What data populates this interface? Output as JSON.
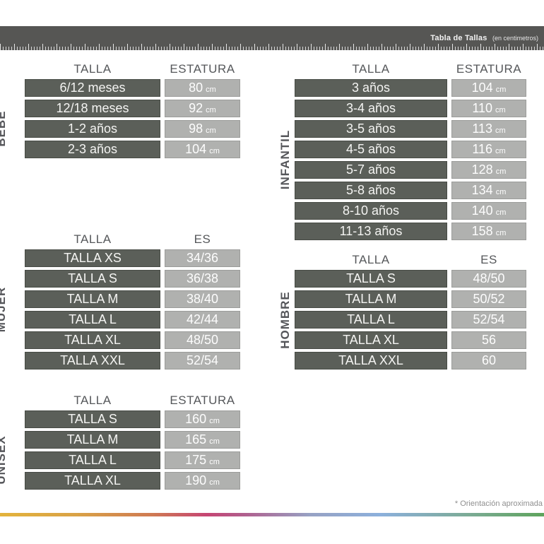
{
  "topbar": {
    "title": "Tabla de Tallas",
    "subtitle": "(en centimetros)"
  },
  "footnote": "* Orientación aproximada",
  "colors": {
    "topbar_bg": "#565654",
    "dark_cell_bg": "#5b5f59",
    "light_cell_bg": "#b0b1af",
    "header_text": "#55575a",
    "cell_text": "#ffffff",
    "footnote_text": "#8f8f8f",
    "rainbow": [
      "#e3b33c",
      "#c64573",
      "#8cb0dc",
      "#5ea45c"
    ]
  },
  "sections": [
    {
      "id": "bebe",
      "label": "BEBE",
      "col1": "TALLA",
      "col2": "ESTATURA",
      "rows": [
        {
          "talla": "6/12 meses",
          "value": "80",
          "unit": "cm"
        },
        {
          "talla": "12/18 meses",
          "value": "92",
          "unit": "cm"
        },
        {
          "talla": "1-2 años",
          "value": "98",
          "unit": "cm"
        },
        {
          "talla": "2-3 años",
          "value": "104",
          "unit": "cm"
        }
      ]
    },
    {
      "id": "infantil",
      "label": "INFANTIL",
      "col1": "TALLA",
      "col2": "ESTATURA",
      "rows": [
        {
          "talla": "3 años",
          "value": "104",
          "unit": "cm"
        },
        {
          "talla": "3-4 años",
          "value": "110",
          "unit": "cm"
        },
        {
          "talla": "3-5 años",
          "value": "113",
          "unit": "cm"
        },
        {
          "talla": "4-5 años",
          "value": "116",
          "unit": "cm"
        },
        {
          "talla": "5-7 años",
          "value": "128",
          "unit": "cm"
        },
        {
          "talla": "5-8 años",
          "value": "134",
          "unit": "cm"
        },
        {
          "talla": "8-10 años",
          "value": "140",
          "unit": "cm"
        },
        {
          "talla": "11-13 años",
          "value": "158",
          "unit": "cm"
        }
      ]
    },
    {
      "id": "mujer",
      "label": "MUJER",
      "col1": "TALLA",
      "col2": "ES",
      "rows": [
        {
          "talla": "TALLA XS",
          "value": "34/36",
          "unit": ""
        },
        {
          "talla": "TALLA S",
          "value": "36/38",
          "unit": ""
        },
        {
          "talla": "TALLA M",
          "value": "38/40",
          "unit": ""
        },
        {
          "talla": "TALLA L",
          "value": "42/44",
          "unit": ""
        },
        {
          "talla": "TALLA XL",
          "value": "48/50",
          "unit": ""
        },
        {
          "talla": "TALLA XXL",
          "value": "52/54",
          "unit": ""
        }
      ]
    },
    {
      "id": "hombre",
      "label": "HOMBRE",
      "col1": "TALLA",
      "col2": "ES",
      "rows": [
        {
          "talla": "TALLA S",
          "value": "48/50",
          "unit": ""
        },
        {
          "talla": "TALLA M",
          "value": "50/52",
          "unit": ""
        },
        {
          "talla": "TALLA L",
          "value": "52/54",
          "unit": ""
        },
        {
          "talla": "TALLA XL",
          "value": "56",
          "unit": ""
        },
        {
          "talla": "TALLA XXL",
          "value": "60",
          "unit": ""
        }
      ]
    },
    {
      "id": "unisex",
      "label": "UNISEX",
      "col1": "TALLA",
      "col2": "ESTATURA",
      "rows": [
        {
          "talla": "TALLA S",
          "value": "160",
          "unit": "cm"
        },
        {
          "talla": "TALLA M",
          "value": "165",
          "unit": "cm"
        },
        {
          "talla": "TALLA L",
          "value": "175",
          "unit": "cm"
        },
        {
          "talla": "TALLA XL",
          "value": "190",
          "unit": "cm"
        }
      ]
    }
  ]
}
